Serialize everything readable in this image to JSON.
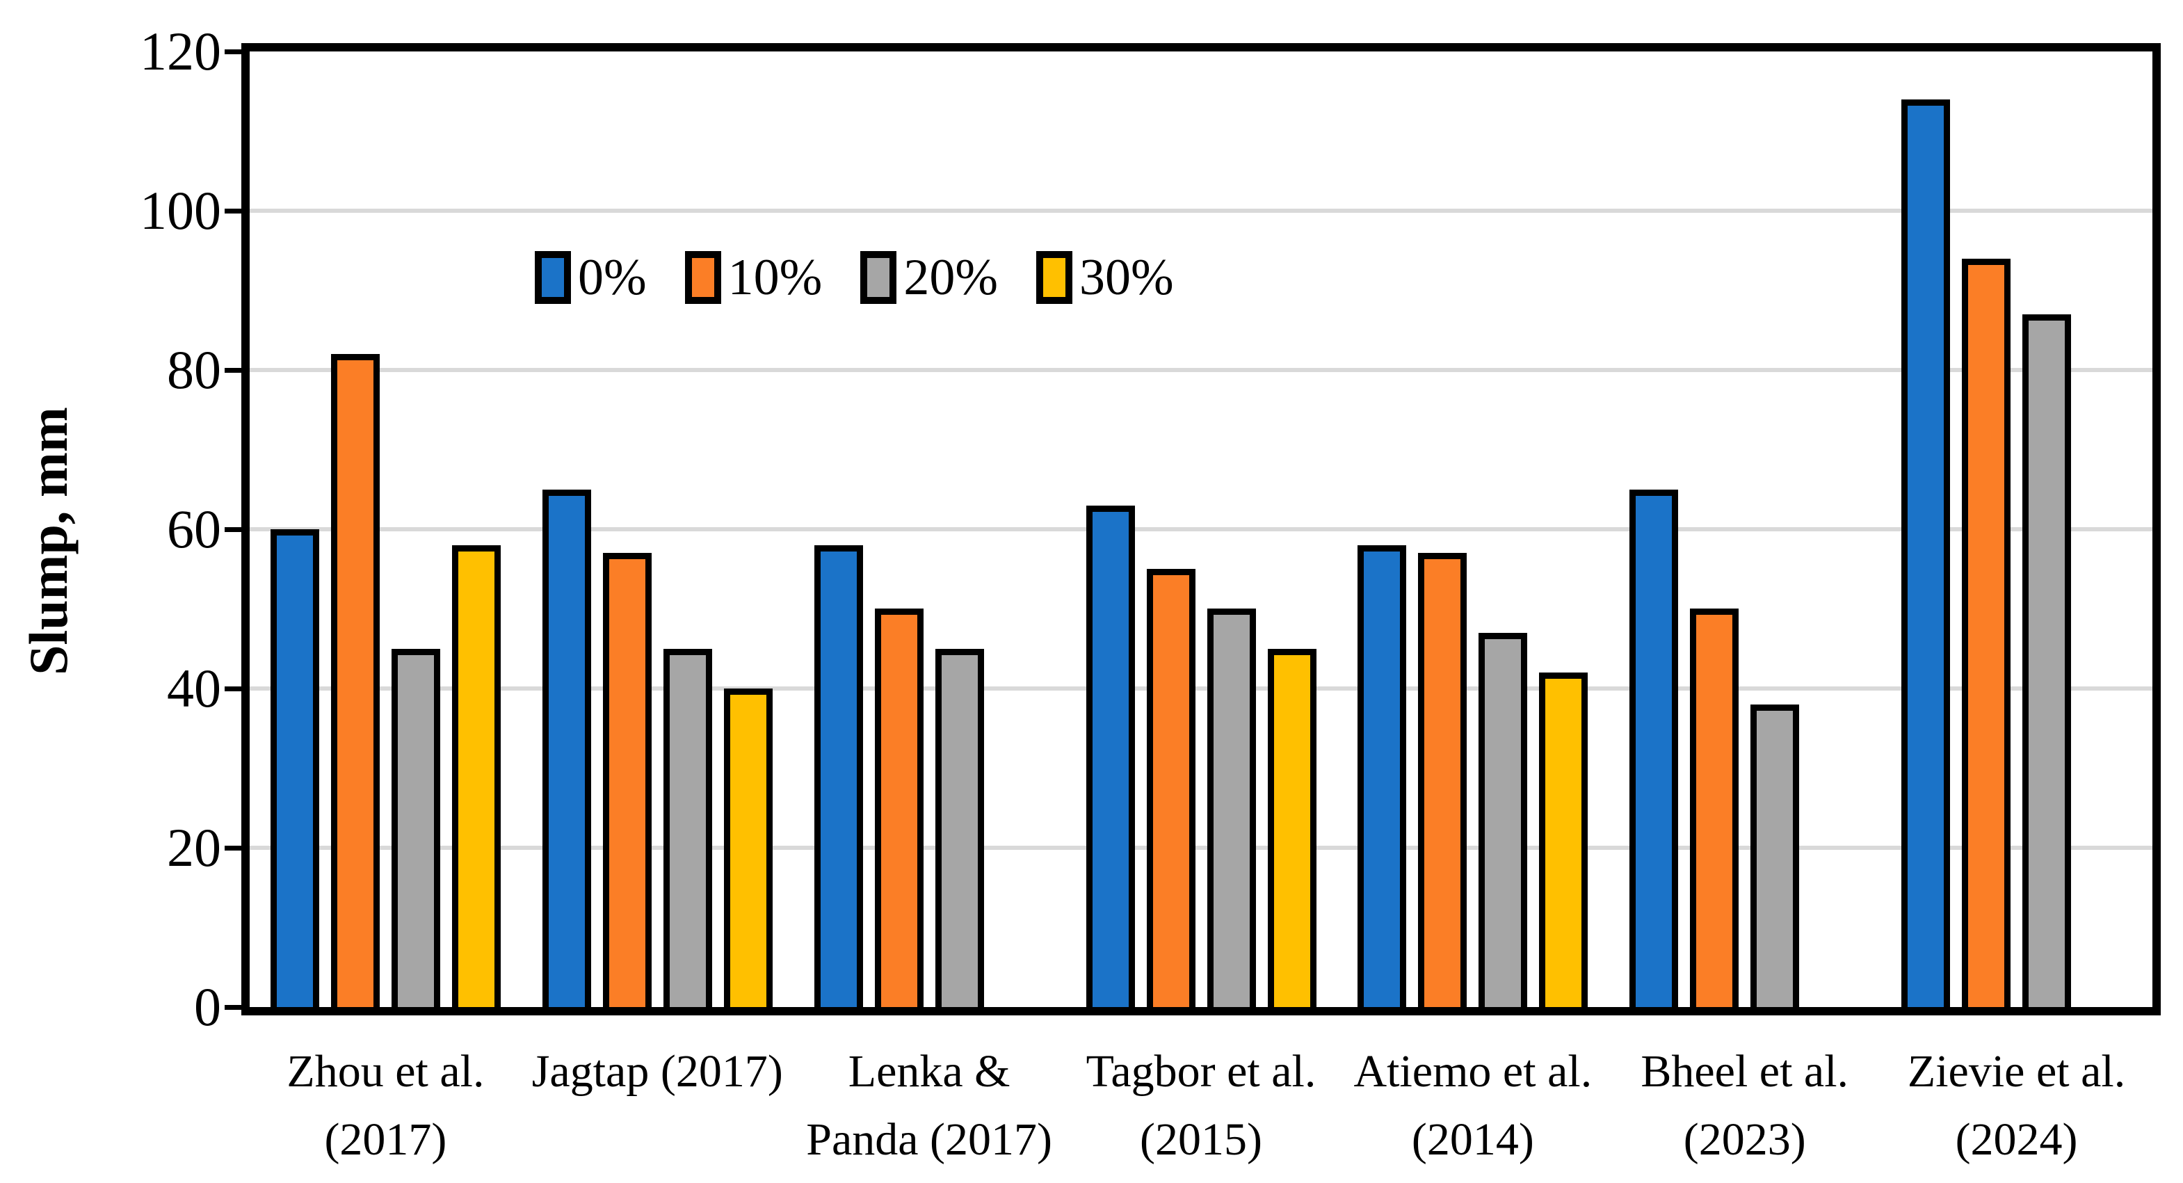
{
  "chart_data": {
    "type": "bar",
    "title": "",
    "xlabel": "",
    "ylabel": "Slump, mm",
    "ylim": [
      0,
      120
    ],
    "yticks": [
      0,
      20,
      40,
      60,
      80,
      100,
      120
    ],
    "grid": "horizontal",
    "legend_position": "inside-top-left",
    "categories": [
      [
        "Zhou et al.",
        "(2017)"
      ],
      [
        "Jagtap (2017)",
        ""
      ],
      [
        "Lenka &",
        "Panda (2017)"
      ],
      [
        "Tagbor et al.",
        "(2015)"
      ],
      [
        "Atiemo et al.",
        "(2014)"
      ],
      [
        "Bheel et al.",
        "(2023)"
      ],
      [
        "Zievie et al.",
        "(2024)"
      ]
    ],
    "series": [
      {
        "name": "0%",
        "color": "#1B73C8",
        "values": [
          60,
          65,
          58,
          63,
          58,
          65,
          114
        ]
      },
      {
        "name": "10%",
        "color": "#FB7E26",
        "values": [
          82,
          57,
          50,
          55,
          57,
          50,
          94
        ]
      },
      {
        "name": "20%",
        "color": "#A6A6A6",
        "values": [
          45,
          45,
          45,
          50,
          47,
          38,
          87
        ]
      },
      {
        "name": "30%",
        "color": "#FFC000",
        "values": [
          58,
          40,
          null,
          45,
          42,
          null,
          null
        ]
      }
    ],
    "colors": {
      "axis": "#000000",
      "gridline": "#D9D9D9",
      "background": "#FFFFFF"
    }
  }
}
